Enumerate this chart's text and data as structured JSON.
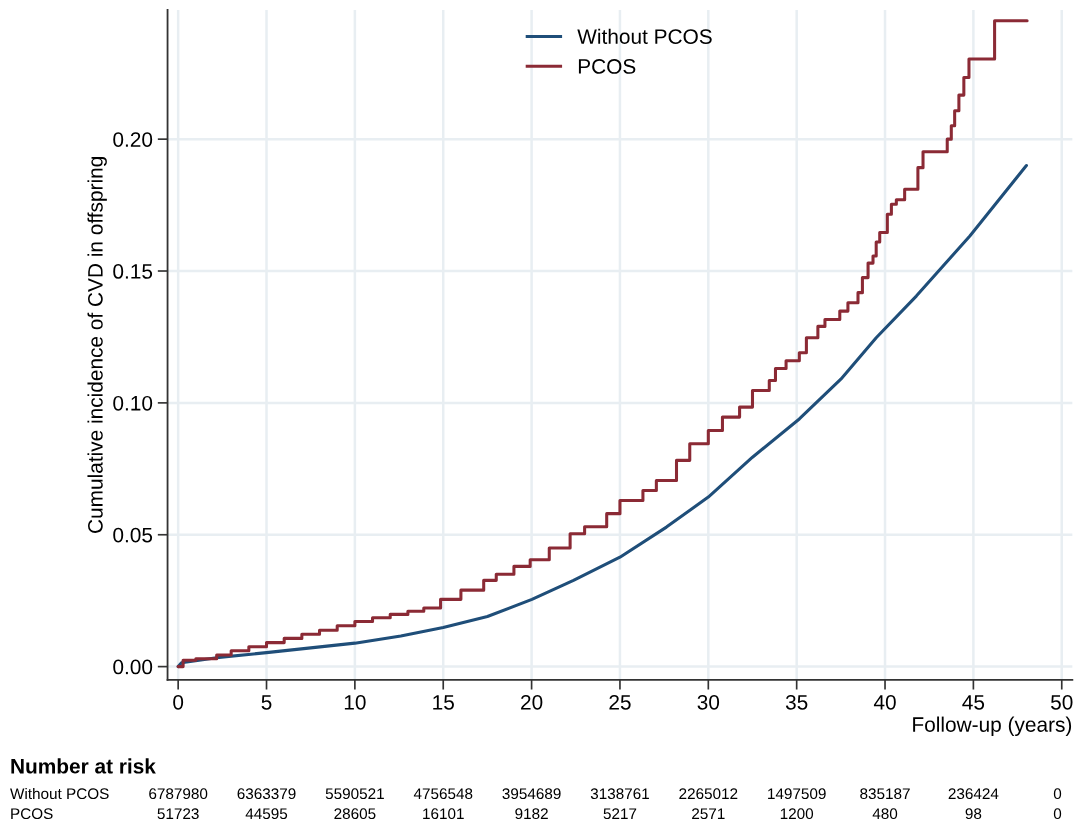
{
  "chart_data": {
    "type": "line",
    "xlabel": "Follow-up (years)",
    "ylabel": "Cumulative incidence of CVD in offspring",
    "series": [
      {
        "name": "Without PCOS",
        "color": "#1f4e79",
        "x": [
          0,
          0.19,
          2.18,
          5,
          10,
          12.6,
          15,
          17.5,
          20.02,
          22.37,
          25,
          27.63,
          30,
          32.5,
          35.15,
          37.5,
          39.5,
          41.77,
          44.8,
          48
        ],
        "values": [
          0,
          0.0015,
          0.0034,
          0.0053,
          0.0089,
          0.0116,
          0.0148,
          0.019,
          0.0255,
          0.0327,
          0.0415,
          0.0529,
          0.0643,
          0.0794,
          0.0939,
          0.109,
          0.1247,
          0.1405,
          0.1633,
          0.19
        ]
      },
      {
        "name": "PCOS",
        "color": "#8b2a35",
        "type": "step",
        "x": [
          0,
          0.28,
          1,
          2.18,
          3,
          4,
          5,
          6,
          7,
          8,
          9,
          10,
          11,
          12,
          13,
          13.9,
          14.85,
          16,
          17.29,
          18,
          19,
          19.92,
          21,
          22.18,
          23,
          24.25,
          25,
          26.3,
          27.06,
          28.2,
          28.95,
          30,
          30.8,
          31.77,
          32.5,
          33.45,
          33.8,
          34.4,
          35.15,
          35.55,
          36.2,
          36.6,
          37.44,
          37.9,
          38.47,
          38.72,
          39.04,
          39.32,
          39.5,
          39.7,
          40.13,
          40.36,
          40.64,
          41.11,
          41.86,
          42.15,
          43.52,
          43.75,
          43.94,
          44.18,
          44.46,
          44.75,
          46.2,
          48.04
        ],
        "values": [
          0,
          0.0024,
          0.003,
          0.0044,
          0.006,
          0.0075,
          0.0091,
          0.0107,
          0.0123,
          0.0138,
          0.0155,
          0.0171,
          0.0185,
          0.0198,
          0.021,
          0.0222,
          0.0255,
          0.029,
          0.0327,
          0.035,
          0.038,
          0.0405,
          0.045,
          0.0504,
          0.053,
          0.058,
          0.063,
          0.0668,
          0.0706,
          0.0782,
          0.0845,
          0.0895,
          0.0946,
          0.0984,
          0.1047,
          0.1085,
          0.113,
          0.116,
          0.119,
          0.1247,
          0.129,
          0.1316,
          0.1348,
          0.138,
          0.1418,
          0.1475,
          0.153,
          0.1557,
          0.161,
          0.1646,
          0.1715,
          0.1753,
          0.177,
          0.181,
          0.1892,
          0.1952,
          0.2,
          0.2051,
          0.2108,
          0.2167,
          0.2234,
          0.2304,
          0.2449,
          0.2449
        ]
      }
    ],
    "xlim": [
      -0.6,
      50.6
    ],
    "ylim": [
      -0.005,
      0.249
    ],
    "xticks": [
      0,
      5,
      10,
      15,
      20,
      25,
      30,
      35,
      40,
      45,
      50
    ],
    "yticks": [
      {
        "value": 0,
        "label": "0.00"
      },
      {
        "value": 0.05,
        "label": "0.05"
      },
      {
        "value": 0.1,
        "label": "0.10"
      },
      {
        "value": 0.15,
        "label": "0.15"
      },
      {
        "value": 0.2,
        "label": "0.20"
      }
    ],
    "grid": true,
    "legend": "top",
    "annotations": [
      "Number at risk",
      "Without PCOS",
      "6787980",
      "6363379",
      "5590521",
      "4756548",
      "3954689",
      "3138761",
      "2265012",
      "1497509",
      "835187",
      "236424",
      "0",
      "PCOS",
      "51723",
      "44595",
      "28605",
      "16101",
      "9182",
      "5217",
      "2571",
      "1200",
      "480",
      "98",
      "0"
    ]
  }
}
